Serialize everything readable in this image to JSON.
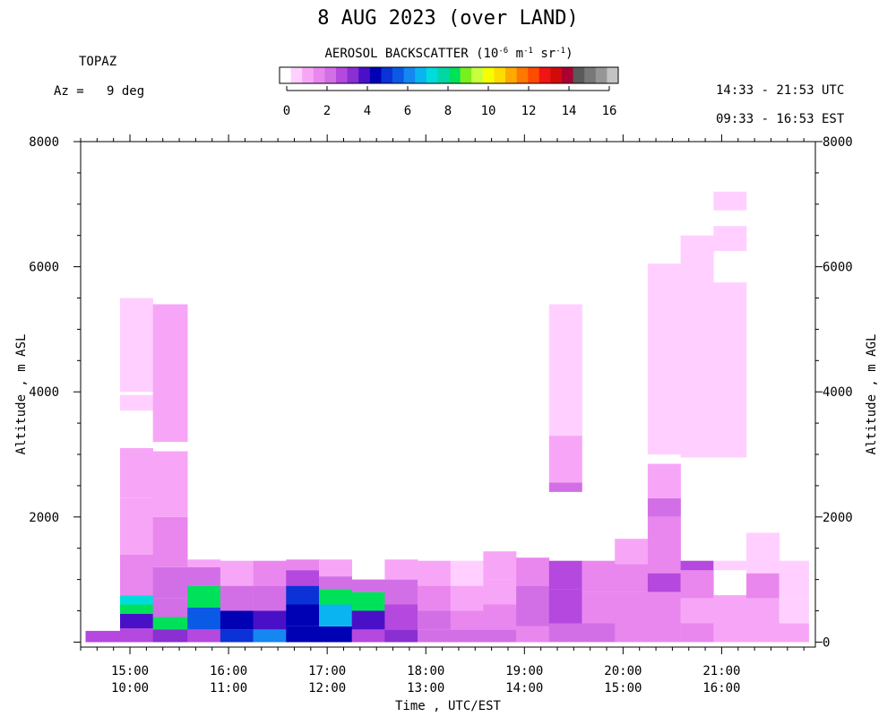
{
  "header": {
    "title": "8 AUG 2023 (over LAND)",
    "instrument": "TOPAZ",
    "azimuth_label": "Az =",
    "azimuth_value": "9 deg",
    "utc_range": "14:33 - 21:53 UTC",
    "est_range": "09:33 - 16:53 EST"
  },
  "colorbar": {
    "title_prefix": "AEROSOL BACKSCATTER (10",
    "title_exp1": "-6",
    "title_mid": " m",
    "title_exp2": "-1",
    "title_mid2": " sr",
    "title_exp3": "-1",
    "title_suffix": ")",
    "tick_labels": [
      "0",
      "2",
      "4",
      "6",
      "8",
      "10",
      "12",
      "14",
      "16"
    ],
    "min": 0,
    "max": 16,
    "colors": [
      "#ffffff",
      "#ffd0ff",
      "#f7a6f7",
      "#e987ee",
      "#d36fe6",
      "#b548de",
      "#8a2fd2",
      "#4a10c8",
      "#0000b4",
      "#0a32d6",
      "#0a5ae6",
      "#1487f0",
      "#0ab4f0",
      "#00dcdc",
      "#00d7a5",
      "#00e15a",
      "#78f01e",
      "#c8ff3c",
      "#f5ff00",
      "#ffdc00",
      "#ffaa00",
      "#ff7800",
      "#ff4b00",
      "#f01414",
      "#d20a0a",
      "#aa0032",
      "#5a5a5a",
      "#787878",
      "#969696",
      "#c3c3c3"
    ]
  },
  "chart_data": {
    "type": "heatmap",
    "title": "8 AUG 2023 (over LAND)",
    "xlabel": "Time , UTC/EST",
    "ylabel_left": "Altitude , m ASL",
    "ylabel_right": "Altitude , m AGL",
    "x_ticks_utc": [
      "15:00",
      "16:00",
      "17:00",
      "18:00",
      "19:00",
      "20:00",
      "21:00"
    ],
    "x_ticks_est": [
      "10:00",
      "11:00",
      "12:00",
      "13:00",
      "14:00",
      "15:00",
      "16:00"
    ],
    "x_range_utc": [
      "14:33",
      "21:53"
    ],
    "left_yticks": [
      2000,
      4000,
      6000,
      8000
    ],
    "right_yticks": [
      0,
      2000,
      4000,
      6000,
      8000
    ],
    "ylim_asl": [
      0,
      8000
    ],
    "ground_altitude_asl": 0,
    "value_units": "10^-6 m^-1 sr^-1",
    "columns": [
      {
        "start": "14:33",
        "end": "14:54",
        "profile": [
          [
            0,
            180,
            2.8
          ]
        ]
      },
      {
        "start": "14:54",
        "end": "15:14",
        "profile": [
          [
            0,
            220,
            3.0
          ],
          [
            220,
            450,
            4.0
          ],
          [
            450,
            600,
            8.0
          ],
          [
            600,
            750,
            7.0
          ],
          [
            750,
            1400,
            1.8
          ],
          [
            1400,
            2300,
            1.4
          ],
          [
            2300,
            3100,
            1.1
          ],
          [
            3700,
            3950,
            1.0
          ],
          [
            4000,
            5500,
            1.0
          ]
        ]
      },
      {
        "start": "15:14",
        "end": "15:35",
        "profile": [
          [
            0,
            200,
            3.6
          ],
          [
            200,
            400,
            8.5
          ],
          [
            400,
            700,
            2.6
          ],
          [
            700,
            1200,
            2.3
          ],
          [
            1200,
            2000,
            1.6
          ],
          [
            2000,
            3050,
            1.2
          ],
          [
            3200,
            5400,
            1.1
          ]
        ]
      },
      {
        "start": "15:35",
        "end": "15:55",
        "profile": [
          [
            0,
            200,
            2.8
          ],
          [
            200,
            550,
            5.8
          ],
          [
            550,
            900,
            8.4
          ],
          [
            900,
            1200,
            2.2
          ],
          [
            1200,
            1320,
            1.4
          ]
        ]
      },
      {
        "start": "15:55",
        "end": "16:15",
        "profile": [
          [
            0,
            200,
            5.0
          ],
          [
            200,
            500,
            4.5
          ],
          [
            500,
            900,
            2.3
          ],
          [
            900,
            1300,
            1.5
          ]
        ]
      },
      {
        "start": "16:15",
        "end": "16:35",
        "profile": [
          [
            0,
            200,
            6.0
          ],
          [
            200,
            500,
            3.8
          ],
          [
            500,
            900,
            2.6
          ],
          [
            900,
            1300,
            1.7
          ]
        ]
      },
      {
        "start": "16:35",
        "end": "16:55",
        "profile": [
          [
            0,
            250,
            4.6
          ],
          [
            250,
            600,
            4.3
          ],
          [
            600,
            900,
            5.0
          ],
          [
            900,
            1150,
            2.8
          ],
          [
            1150,
            1320,
            1.8
          ]
        ]
      },
      {
        "start": "16:55",
        "end": "17:15",
        "profile": [
          [
            0,
            250,
            4.4
          ],
          [
            250,
            600,
            6.8
          ],
          [
            600,
            850,
            8.3
          ],
          [
            850,
            1050,
            2.4
          ],
          [
            1050,
            1320,
            1.5
          ]
        ]
      },
      {
        "start": "17:15",
        "end": "17:35",
        "profile": [
          [
            0,
            200,
            3.0
          ],
          [
            200,
            500,
            4.0
          ],
          [
            500,
            800,
            8.0
          ],
          [
            800,
            1000,
            2.6
          ]
        ]
      },
      {
        "start": "17:35",
        "end": "17:55",
        "profile": [
          [
            0,
            200,
            3.2
          ],
          [
            200,
            600,
            2.7
          ],
          [
            600,
            1000,
            2.3
          ],
          [
            1000,
            1320,
            1.4
          ]
        ]
      },
      {
        "start": "17:55",
        "end": "18:15",
        "profile": [
          [
            0,
            200,
            2.5
          ],
          [
            200,
            500,
            2.2
          ],
          [
            500,
            900,
            1.6
          ],
          [
            900,
            1300,
            1.2
          ]
        ]
      },
      {
        "start": "18:15",
        "end": "18:35",
        "profile": [
          [
            0,
            200,
            2.3
          ],
          [
            200,
            500,
            1.9
          ],
          [
            500,
            900,
            1.3
          ],
          [
            900,
            1300,
            1.0
          ]
        ]
      },
      {
        "start": "18:35",
        "end": "18:55",
        "profile": [
          [
            0,
            200,
            2.3
          ],
          [
            200,
            600,
            1.9
          ],
          [
            600,
            1000,
            1.5
          ],
          [
            1000,
            1450,
            1.2
          ]
        ]
      },
      {
        "start": "18:55",
        "end": "19:15",
        "profile": [
          [
            0,
            250,
            2.1
          ],
          [
            250,
            600,
            2.2
          ],
          [
            600,
            900,
            2.3
          ],
          [
            900,
            1350,
            1.6
          ]
        ]
      },
      {
        "start": "19:15",
        "end": "19:35",
        "profile": [
          [
            0,
            300,
            2.4
          ],
          [
            300,
            850,
            3.0
          ],
          [
            850,
            1300,
            2.7
          ],
          [
            2400,
            2550,
            2.2
          ],
          [
            2550,
            2700,
            1.4
          ],
          [
            2700,
            3300,
            1.1
          ],
          [
            3300,
            5400,
            1.0
          ]
        ]
      },
      {
        "start": "19:35",
        "end": "19:55",
        "profile": [
          [
            0,
            300,
            2.2
          ],
          [
            300,
            800,
            1.9
          ],
          [
            800,
            1300,
            1.6
          ]
        ]
      },
      {
        "start": "19:55",
        "end": "20:15",
        "profile": [
          [
            0,
            300,
            2.0
          ],
          [
            300,
            800,
            1.9
          ],
          [
            800,
            1250,
            1.7
          ],
          [
            1250,
            1650,
            1.1
          ]
        ]
      },
      {
        "start": "20:15",
        "end": "20:35",
        "profile": [
          [
            0,
            300,
            1.6
          ],
          [
            300,
            800,
            1.8
          ],
          [
            800,
            1100,
            2.8
          ],
          [
            1100,
            2000,
            1.7
          ],
          [
            2000,
            2300,
            2.3
          ],
          [
            2300,
            2850,
            1.4
          ],
          [
            3000,
            6050,
            1.0
          ]
        ]
      },
      {
        "start": "20:35",
        "end": "20:55",
        "profile": [
          [
            0,
            300,
            1.7
          ],
          [
            300,
            700,
            1.5
          ],
          [
            700,
            1150,
            1.7
          ],
          [
            1150,
            1300,
            2.8
          ],
          [
            2950,
            6500,
            1.0
          ]
        ]
      },
      {
        "start": "20:55",
        "end": "21:15",
        "profile": [
          [
            0,
            300,
            1.4
          ],
          [
            300,
            750,
            1.2
          ],
          [
            1150,
            1300,
            1.0
          ],
          [
            2950,
            5750,
            1.0
          ],
          [
            6250,
            6650,
            1.0
          ],
          [
            6900,
            7200,
            1.0
          ]
        ]
      },
      {
        "start": "21:15",
        "end": "21:35",
        "profile": [
          [
            0,
            300,
            1.3
          ],
          [
            300,
            700,
            1.4
          ],
          [
            700,
            1100,
            1.9
          ],
          [
            1100,
            1750,
            1.0
          ]
        ]
      },
      {
        "start": "21:35",
        "end": "21:53",
        "profile": [
          [
            0,
            300,
            1.3
          ],
          [
            300,
            700,
            1.0
          ],
          [
            700,
            1300,
            1.0
          ]
        ]
      }
    ]
  }
}
